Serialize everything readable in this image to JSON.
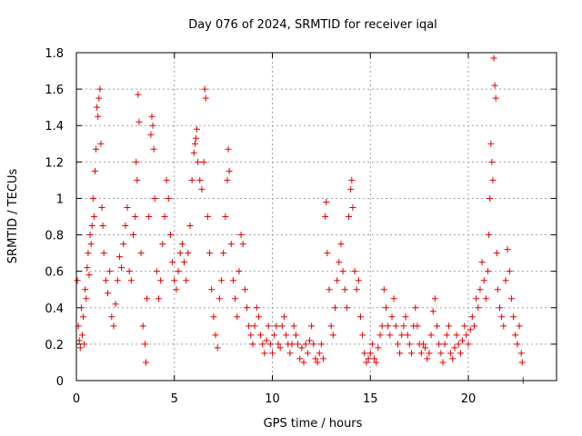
{
  "chart_data": {
    "type": "scatter",
    "title": "Day 076 of 2024, SRMTID for receiver iqal",
    "xlabel": "GPS time / hours",
    "ylabel": "SRMTID / TECUs",
    "xlim": [
      0,
      24.5
    ],
    "ylim": [
      0,
      1.8
    ],
    "xticks": [
      0,
      5,
      10,
      15,
      20
    ],
    "xtick_labels": [
      "0",
      "5",
      "10",
      "15",
      "20"
    ],
    "yticks": [
      0,
      0.2,
      0.4,
      0.6,
      0.8,
      1.0,
      1.2,
      1.4,
      1.6,
      1.8
    ],
    "ytick_labels": [
      "0",
      "0.2",
      "0.4",
      "0.6",
      "0.8",
      "1",
      "1.2",
      "1.4",
      "1.6",
      "1.8"
    ],
    "grid": true,
    "marker": "plus",
    "color": "#e00000",
    "series": [
      {
        "name": "SRMTID",
        "points": [
          [
            0.05,
            0.55
          ],
          [
            0.1,
            0.3
          ],
          [
            0.15,
            0.22
          ],
          [
            0.2,
            0.18
          ],
          [
            0.25,
            0.4
          ],
          [
            0.3,
            0.25
          ],
          [
            0.35,
            0.35
          ],
          [
            0.4,
            0.2
          ],
          [
            0.45,
            0.5
          ],
          [
            0.5,
            0.45
          ],
          [
            0.55,
            0.62
          ],
          [
            0.6,
            0.7
          ],
          [
            0.65,
            0.58
          ],
          [
            0.7,
            0.8
          ],
          [
            0.75,
            0.75
          ],
          [
            0.8,
            0.85
          ],
          [
            0.85,
            1.0
          ],
          [
            0.9,
            0.9
          ],
          [
            0.95,
            1.15
          ],
          [
            1.0,
            1.27
          ],
          [
            1.05,
            1.5
          ],
          [
            1.1,
            1.45
          ],
          [
            1.15,
            1.55
          ],
          [
            1.2,
            1.6
          ],
          [
            1.25,
            1.3
          ],
          [
            1.3,
            0.95
          ],
          [
            1.35,
            0.85
          ],
          [
            1.4,
            0.7
          ],
          [
            1.5,
            0.55
          ],
          [
            1.6,
            0.48
          ],
          [
            1.7,
            0.6
          ],
          [
            1.8,
            0.35
          ],
          [
            1.9,
            0.3
          ],
          [
            2.0,
            0.42
          ],
          [
            2.1,
            0.55
          ],
          [
            2.2,
            0.68
          ],
          [
            2.3,
            0.62
          ],
          [
            2.4,
            0.75
          ],
          [
            2.5,
            0.85
          ],
          [
            2.6,
            0.95
          ],
          [
            2.7,
            0.6
          ],
          [
            2.8,
            0.55
          ],
          [
            2.9,
            0.8
          ],
          [
            3.0,
            0.9
          ],
          [
            3.05,
            1.2
          ],
          [
            3.1,
            1.1
          ],
          [
            3.15,
            1.57
          ],
          [
            3.2,
            1.42
          ],
          [
            3.3,
            0.7
          ],
          [
            3.4,
            0.3
          ],
          [
            3.5,
            0.2
          ],
          [
            3.55,
            0.1
          ],
          [
            3.6,
            0.45
          ],
          [
            3.7,
            0.9
          ],
          [
            3.8,
            1.35
          ],
          [
            3.85,
            1.45
          ],
          [
            3.9,
            1.4
          ],
          [
            3.95,
            1.27
          ],
          [
            4.0,
            1.0
          ],
          [
            4.1,
            0.6
          ],
          [
            4.2,
            0.45
          ],
          [
            4.3,
            0.55
          ],
          [
            4.4,
            0.75
          ],
          [
            4.5,
            0.9
          ],
          [
            4.6,
            1.1
          ],
          [
            4.7,
            1.0
          ],
          [
            4.8,
            0.8
          ],
          [
            4.9,
            0.65
          ],
          [
            5.0,
            0.55
          ],
          [
            5.1,
            0.5
          ],
          [
            5.2,
            0.6
          ],
          [
            5.3,
            0.7
          ],
          [
            5.4,
            0.75
          ],
          [
            5.5,
            0.65
          ],
          [
            5.6,
            0.55
          ],
          [
            5.7,
            0.7
          ],
          [
            5.8,
            0.85
          ],
          [
            5.9,
            1.1
          ],
          [
            6.0,
            1.25
          ],
          [
            6.05,
            1.3
          ],
          [
            6.1,
            1.33
          ],
          [
            6.15,
            1.38
          ],
          [
            6.2,
            1.2
          ],
          [
            6.3,
            1.1
          ],
          [
            6.4,
            1.05
          ],
          [
            6.5,
            1.2
          ],
          [
            6.55,
            1.6
          ],
          [
            6.6,
            1.55
          ],
          [
            6.7,
            0.9
          ],
          [
            6.8,
            0.7
          ],
          [
            6.9,
            0.5
          ],
          [
            7.0,
            0.35
          ],
          [
            7.1,
            0.25
          ],
          [
            7.2,
            0.18
          ],
          [
            7.3,
            0.45
          ],
          [
            7.4,
            0.55
          ],
          [
            7.5,
            0.7
          ],
          [
            7.6,
            0.9
          ],
          [
            7.7,
            1.1
          ],
          [
            7.75,
            1.27
          ],
          [
            7.8,
            1.15
          ],
          [
            7.9,
            0.75
          ],
          [
            8.0,
            0.55
          ],
          [
            8.1,
            0.45
          ],
          [
            8.2,
            0.35
          ],
          [
            8.3,
            0.6
          ],
          [
            8.4,
            0.8
          ],
          [
            8.5,
            0.75
          ],
          [
            8.6,
            0.5
          ],
          [
            8.7,
            0.4
          ],
          [
            8.8,
            0.3
          ],
          [
            8.9,
            0.25
          ],
          [
            9.0,
            0.2
          ],
          [
            9.1,
            0.3
          ],
          [
            9.2,
            0.4
          ],
          [
            9.3,
            0.35
          ],
          [
            9.4,
            0.25
          ],
          [
            9.5,
            0.2
          ],
          [
            9.6,
            0.15
          ],
          [
            9.7,
            0.22
          ],
          [
            9.8,
            0.3
          ],
          [
            9.9,
            0.2
          ],
          [
            10.0,
            0.15
          ],
          [
            10.1,
            0.25
          ],
          [
            10.2,
            0.3
          ],
          [
            10.3,
            0.2
          ],
          [
            10.4,
            0.18
          ],
          [
            10.5,
            0.3
          ],
          [
            10.6,
            0.35
          ],
          [
            10.7,
            0.25
          ],
          [
            10.8,
            0.2
          ],
          [
            10.9,
            0.15
          ],
          [
            11.0,
            0.2
          ],
          [
            11.1,
            0.3
          ],
          [
            11.2,
            0.25
          ],
          [
            11.3,
            0.2
          ],
          [
            11.4,
            0.12
          ],
          [
            11.5,
            0.18
          ],
          [
            11.6,
            0.1
          ],
          [
            11.7,
            0.2
          ],
          [
            11.8,
            0.15
          ],
          [
            11.9,
            0.22
          ],
          [
            12.0,
            0.3
          ],
          [
            12.1,
            0.2
          ],
          [
            12.2,
            0.12
          ],
          [
            12.3,
            0.1
          ],
          [
            12.4,
            0.15
          ],
          [
            12.5,
            0.2
          ],
          [
            12.6,
            0.12
          ],
          [
            12.7,
            0.9
          ],
          [
            12.75,
            0.98
          ],
          [
            12.8,
            0.7
          ],
          [
            12.9,
            0.5
          ],
          [
            13.0,
            0.3
          ],
          [
            13.1,
            0.25
          ],
          [
            13.2,
            0.4
          ],
          [
            13.3,
            0.55
          ],
          [
            13.4,
            0.65
          ],
          [
            13.5,
            0.75
          ],
          [
            13.6,
            0.6
          ],
          [
            13.7,
            0.5
          ],
          [
            13.8,
            0.4
          ],
          [
            13.9,
            0.9
          ],
          [
            14.0,
            1.05
          ],
          [
            14.05,
            1.1
          ],
          [
            14.1,
            0.95
          ],
          [
            14.2,
            0.6
          ],
          [
            14.3,
            0.5
          ],
          [
            14.4,
            0.55
          ],
          [
            14.5,
            0.35
          ],
          [
            14.6,
            0.25
          ],
          [
            14.7,
            0.15
          ],
          [
            14.8,
            0.1
          ],
          [
            14.9,
            0.12
          ],
          [
            15.0,
            0.15
          ],
          [
            15.1,
            0.2
          ],
          [
            15.2,
            0.12
          ],
          [
            15.3,
            0.1
          ],
          [
            15.4,
            0.18
          ],
          [
            15.5,
            0.25
          ],
          [
            15.6,
            0.3
          ],
          [
            15.7,
            0.5
          ],
          [
            15.8,
            0.4
          ],
          [
            15.9,
            0.3
          ],
          [
            16.0,
            0.25
          ],
          [
            16.1,
            0.35
          ],
          [
            16.2,
            0.45
          ],
          [
            16.3,
            0.3
          ],
          [
            16.4,
            0.2
          ],
          [
            16.5,
            0.15
          ],
          [
            16.6,
            0.25
          ],
          [
            16.7,
            0.3
          ],
          [
            16.8,
            0.35
          ],
          [
            16.9,
            0.25
          ],
          [
            17.0,
            0.2
          ],
          [
            17.1,
            0.15
          ],
          [
            17.2,
            0.3
          ],
          [
            17.3,
            0.4
          ],
          [
            17.4,
            0.3
          ],
          [
            17.5,
            0.2
          ],
          [
            17.6,
            0.15
          ],
          [
            17.7,
            0.2
          ],
          [
            17.8,
            0.18
          ],
          [
            17.9,
            0.12
          ],
          [
            18.0,
            0.15
          ],
          [
            18.1,
            0.25
          ],
          [
            18.2,
            0.38
          ],
          [
            18.3,
            0.45
          ],
          [
            18.4,
            0.3
          ],
          [
            18.5,
            0.2
          ],
          [
            18.6,
            0.15
          ],
          [
            18.7,
            0.1
          ],
          [
            18.8,
            0.2
          ],
          [
            18.9,
            0.25
          ],
          [
            19.0,
            0.3
          ],
          [
            19.1,
            0.15
          ],
          [
            19.2,
            0.12
          ],
          [
            19.3,
            0.18
          ],
          [
            19.4,
            0.25
          ],
          [
            19.5,
            0.2
          ],
          [
            19.6,
            0.15
          ],
          [
            19.7,
            0.22
          ],
          [
            19.8,
            0.3
          ],
          [
            19.9,
            0.25
          ],
          [
            20.0,
            0.2
          ],
          [
            20.1,
            0.28
          ],
          [
            20.2,
            0.35
          ],
          [
            20.3,
            0.3
          ],
          [
            20.4,
            0.45
          ],
          [
            20.5,
            0.4
          ],
          [
            20.6,
            0.5
          ],
          [
            20.7,
            0.65
          ],
          [
            20.8,
            0.55
          ],
          [
            20.9,
            0.45
          ],
          [
            21.0,
            0.6
          ],
          [
            21.05,
            0.8
          ],
          [
            21.1,
            1.0
          ],
          [
            21.15,
            1.3
          ],
          [
            21.2,
            1.2
          ],
          [
            21.25,
            1.1
          ],
          [
            21.3,
            1.77
          ],
          [
            21.35,
            1.62
          ],
          [
            21.4,
            1.55
          ],
          [
            21.45,
            0.7
          ],
          [
            21.5,
            0.5
          ],
          [
            21.6,
            0.4
          ],
          [
            21.7,
            0.35
          ],
          [
            21.8,
            0.3
          ],
          [
            21.9,
            0.55
          ],
          [
            22.0,
            0.72
          ],
          [
            22.1,
            0.6
          ],
          [
            22.2,
            0.45
          ],
          [
            22.3,
            0.35
          ],
          [
            22.4,
            0.25
          ],
          [
            22.5,
            0.2
          ],
          [
            22.6,
            0.3
          ],
          [
            22.7,
            0.15
          ],
          [
            22.75,
            0.1
          ],
          [
            22.8,
            0.0
          ]
        ]
      }
    ]
  }
}
